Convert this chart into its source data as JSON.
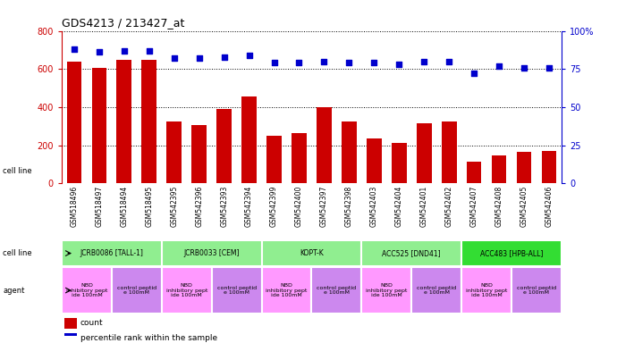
{
  "title": "GDS4213 / 213427_at",
  "gsm_labels": [
    "GSM518496",
    "GSM518497",
    "GSM518494",
    "GSM518495",
    "GSM542395",
    "GSM542396",
    "GSM542393",
    "GSM542394",
    "GSM542399",
    "GSM542400",
    "GSM542397",
    "GSM542398",
    "GSM542403",
    "GSM542404",
    "GSM542401",
    "GSM542402",
    "GSM542407",
    "GSM542408",
    "GSM542405",
    "GSM542406"
  ],
  "bar_values": [
    637,
    608,
    650,
    650,
    325,
    305,
    390,
    455,
    250,
    265,
    400,
    325,
    235,
    215,
    315,
    325,
    115,
    148,
    165,
    170
  ],
  "percentile_values": [
    88,
    86,
    87,
    87,
    82,
    82,
    83,
    84,
    79,
    79,
    80,
    79,
    79,
    78,
    80,
    80,
    72,
    77,
    76,
    76
  ],
  "cell_lines": [
    {
      "label": "JCRB0086 [TALL-1]",
      "start": 0,
      "end": 4,
      "color": "#90EE90"
    },
    {
      "label": "JCRB0033 [CEM]",
      "start": 4,
      "end": 8,
      "color": "#90EE90"
    },
    {
      "label": "KOPT-K",
      "start": 8,
      "end": 12,
      "color": "#90EE90"
    },
    {
      "label": "ACC525 [DND41]",
      "start": 12,
      "end": 16,
      "color": "#90EE90"
    },
    {
      "label": "ACC483 [HPB-ALL]",
      "start": 16,
      "end": 20,
      "color": "#33DD33"
    }
  ],
  "agents": [
    {
      "label": "NBD\ninhibitory pept\nide 100mM",
      "start": 0,
      "end": 2,
      "color": "#FF99FF"
    },
    {
      "label": "control peptid\ne 100mM",
      "start": 2,
      "end": 4,
      "color": "#CC88EE"
    },
    {
      "label": "NBD\ninhibitory pept\nide 100mM",
      "start": 4,
      "end": 6,
      "color": "#FF99FF"
    },
    {
      "label": "control peptid\ne 100mM",
      "start": 6,
      "end": 8,
      "color": "#CC88EE"
    },
    {
      "label": "NBD\ninhibitory pept\nide 100mM",
      "start": 8,
      "end": 10,
      "color": "#FF99FF"
    },
    {
      "label": "control peptid\ne 100mM",
      "start": 10,
      "end": 12,
      "color": "#CC88EE"
    },
    {
      "label": "NBD\ninhibitory pept\nide 100mM",
      "start": 12,
      "end": 14,
      "color": "#FF99FF"
    },
    {
      "label": "control peptid\ne 100mM",
      "start": 14,
      "end": 16,
      "color": "#CC88EE"
    },
    {
      "label": "NBD\ninhibitory pept\nide 100mM",
      "start": 16,
      "end": 18,
      "color": "#FF99FF"
    },
    {
      "label": "control peptid\ne 100mM",
      "start": 18,
      "end": 20,
      "color": "#CC88EE"
    }
  ],
  "bar_color": "#CC0000",
  "dot_color": "#0000CC",
  "ylim_left": [
    0,
    800
  ],
  "ylim_right": [
    0,
    100
  ],
  "yticks_left": [
    0,
    200,
    400,
    600,
    800
  ],
  "yticks_right": [
    0,
    25,
    50,
    75,
    100
  ],
  "background_color": "#FFFFFF",
  "tick_area_color": "#CCCCCC",
  "left_label_color": "#444444"
}
